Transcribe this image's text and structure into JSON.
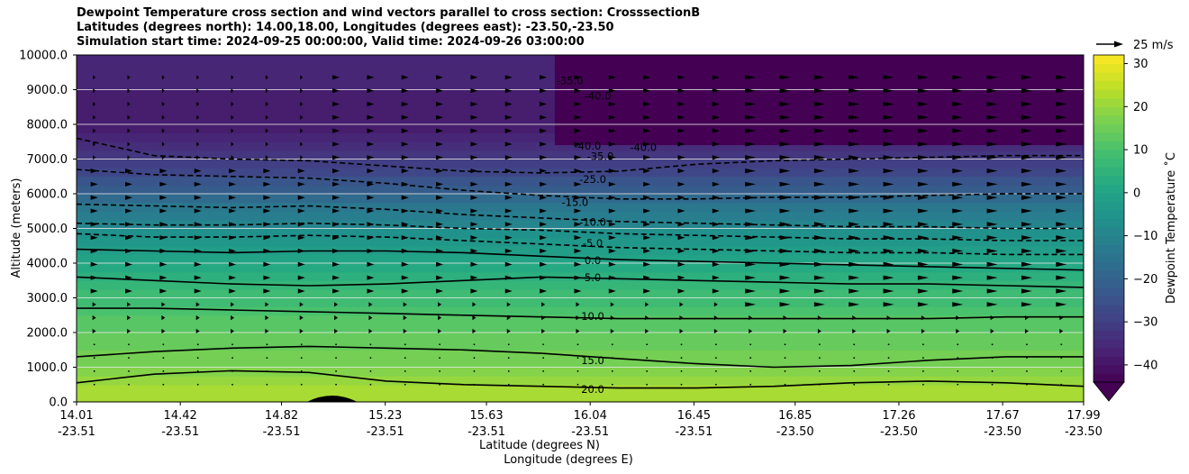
{
  "chart_data": {
    "type": "heatmap",
    "title_lines": [
      "Dewpoint Temperature cross section and wind vectors parallel to cross section: CrosssectionB",
      "Latitudes (degrees north): 14.00,18.00, Longitudes (degrees east): -23.50,-23.50",
      "Simulation start time: 2024-09-25 00:00:00, Valid time: 2024-09-26 03:00:00"
    ],
    "ylabel": "Altitude (meters)",
    "xlabel_line1": "Latitude (degrees N)",
    "xlabel_line2": "Longitude (degrees E)",
    "ylim": [
      0,
      10000
    ],
    "y_ticks": [
      "0.0",
      "1000.0",
      "2000.0",
      "3000.0",
      "4000.0",
      "5000.0",
      "6000.0",
      "7000.0",
      "8000.0",
      "9000.0",
      "10000.0"
    ],
    "x_lat_range": [
      14.01,
      17.99
    ],
    "x_ticks_lat": [
      "14.01",
      "14.42",
      "14.82",
      "15.23",
      "15.63",
      "16.04",
      "16.45",
      "16.85",
      "17.26",
      "17.67",
      "17.99"
    ],
    "x_ticks_lon": [
      "-23.51",
      "-23.51",
      "-23.51",
      "-23.51",
      "-23.51",
      "-23.51",
      "-23.51",
      "-23.50",
      "-23.50",
      "-23.50",
      "-23.50"
    ],
    "grid": "horizontal",
    "colorbar": {
      "label": "Dewpoint Temperature ˚C",
      "ticks": [
        "30",
        "20",
        "10",
        "0",
        "−10",
        "−20",
        "−30",
        "−40"
      ],
      "range": [
        -44,
        32
      ],
      "extend": "min",
      "colormap": "viridis"
    },
    "quiver_key": {
      "label": "25 m/s"
    },
    "contour_labels": [
      "-35.0",
      "-40.0",
      "-40.0",
      "-40.0",
      "-35.0",
      "-25.0",
      "-15.0",
      "-10.0",
      "-5.0",
      "0.0",
      "5.0",
      "10.0",
      "15.0",
      "20.0"
    ],
    "profile": [
      {
        "alt": 0,
        "t": 23
      },
      {
        "alt": 500,
        "t": 21
      },
      {
        "alt": 1000,
        "t": 17
      },
      {
        "alt": 1500,
        "t": 15
      },
      {
        "alt": 2000,
        "t": 13
      },
      {
        "alt": 2500,
        "t": 11
      },
      {
        "alt": 3000,
        "t": 8
      },
      {
        "alt": 3500,
        "t": 5
      },
      {
        "alt": 4000,
        "t": 1
      },
      {
        "alt": 4500,
        "t": -3
      },
      {
        "alt": 5000,
        "t": -8
      },
      {
        "alt": 5500,
        "t": -13
      },
      {
        "alt": 6000,
        "t": -20
      },
      {
        "alt": 6500,
        "t": -26
      },
      {
        "alt": 7000,
        "t": -32
      },
      {
        "alt": 7500,
        "t": -36
      },
      {
        "alt": 8000,
        "t": -38
      },
      {
        "alt": 9000,
        "t": -37
      },
      {
        "alt": 10000,
        "t": -36
      }
    ],
    "dry_region": {
      "lat_start": 15.9,
      "lat_end": 17.99,
      "alt_start": 7400,
      "alt_end": 10000,
      "t": -44
    },
    "solid_contours": [
      {
        "value": 20.0,
        "alts": [
          550,
          800,
          900,
          850,
          600,
          500,
          450,
          400,
          400,
          450,
          550,
          600,
          550,
          450
        ]
      },
      {
        "value": 15.0,
        "alts": [
          1300,
          1450,
          1550,
          1600,
          1550,
          1500,
          1400,
          1250,
          1100,
          1000,
          1050,
          1200,
          1300,
          1300
        ]
      },
      {
        "value": 10.0,
        "alts": [
          2700,
          2700,
          2650,
          2600,
          2550,
          2500,
          2450,
          2400,
          2400,
          2400,
          2400,
          2400,
          2450,
          2450
        ]
      },
      {
        "value": 5.0,
        "alts": [
          3600,
          3500,
          3400,
          3350,
          3400,
          3500,
          3600,
          3550,
          3500,
          3450,
          3400,
          3400,
          3350,
          3300
        ]
      },
      {
        "value": 0.0,
        "alts": [
          4400,
          4350,
          4300,
          4350,
          4350,
          4300,
          4200,
          4100,
          4050,
          4000,
          3950,
          3900,
          3850,
          3800
        ]
      }
    ],
    "dashed_contours": [
      {
        "value": -5.0,
        "alts": [
          4850,
          4750,
          4750,
          4800,
          4750,
          4650,
          4550,
          4450,
          4400,
          4350,
          4300,
          4300,
          4250,
          4250
        ]
      },
      {
        "value": -10.0,
        "alts": [
          5150,
          5100,
          5100,
          5150,
          5100,
          5000,
          4950,
          4850,
          4800,
          4750,
          4700,
          4700,
          4650,
          4650
        ]
      },
      {
        "value": -15.0,
        "alts": [
          5700,
          5650,
          5600,
          5650,
          5550,
          5400,
          5300,
          5200,
          5150,
          5100,
          5050,
          5050,
          5000,
          5000
        ]
      },
      {
        "value": -25.0,
        "alts": [
          6700,
          6550,
          6500,
          6450,
          6300,
          6100,
          5950,
          5850,
          5850,
          5900,
          5900,
          5950,
          6000,
          6000
        ]
      },
      {
        "value": -35.0,
        "alts": [
          7600,
          7100,
          7000,
          6950,
          6800,
          6650,
          6600,
          6650,
          6850,
          6950,
          7000,
          7050,
          7100,
          7100
        ]
      }
    ]
  }
}
